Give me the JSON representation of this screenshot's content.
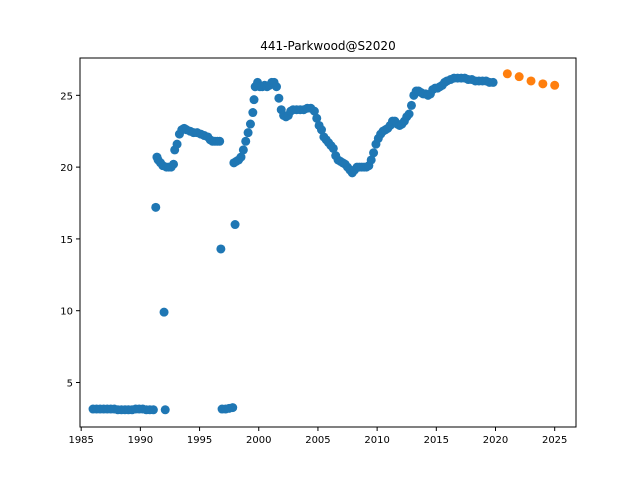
{
  "chart_data": {
    "type": "scatter",
    "title": "441-Parkwood@S2020",
    "xlabel": "",
    "ylabel": "",
    "xlim": [
      1984.9,
      2026.8
    ],
    "ylim": [
      1.9,
      27.6
    ],
    "xticks": [
      1985,
      1990,
      1995,
      2000,
      2005,
      2010,
      2015,
      2020,
      2025
    ],
    "yticks": [
      5,
      10,
      15,
      20,
      25
    ],
    "grid": false,
    "legend": "none",
    "series": [
      {
        "color": "#1f77b4",
        "points": [
          [
            1986.0,
            3.15
          ],
          [
            1986.3,
            3.15
          ],
          [
            1986.6,
            3.15
          ],
          [
            1986.9,
            3.15
          ],
          [
            1987.2,
            3.15
          ],
          [
            1987.5,
            3.15
          ],
          [
            1987.8,
            3.15
          ],
          [
            1988.1,
            3.1
          ],
          [
            1988.4,
            3.1
          ],
          [
            1988.7,
            3.1
          ],
          [
            1989.0,
            3.1
          ],
          [
            1989.3,
            3.1
          ],
          [
            1989.6,
            3.15
          ],
          [
            1989.9,
            3.15
          ],
          [
            1990.2,
            3.15
          ],
          [
            1990.5,
            3.1
          ],
          [
            1990.8,
            3.1
          ],
          [
            1991.1,
            3.1
          ],
          [
            1991.3,
            17.2
          ],
          [
            1991.4,
            20.7
          ],
          [
            1991.5,
            20.5
          ],
          [
            1991.7,
            20.3
          ],
          [
            1991.9,
            20.1
          ],
          [
            1992.0,
            9.9
          ],
          [
            1992.1,
            3.1
          ],
          [
            1992.2,
            20.0
          ],
          [
            1992.4,
            20.0
          ],
          [
            1992.6,
            20.0
          ],
          [
            1992.8,
            20.2
          ],
          [
            1992.9,
            21.2
          ],
          [
            1993.1,
            21.6
          ],
          [
            1993.3,
            22.3
          ],
          [
            1993.5,
            22.6
          ],
          [
            1993.7,
            22.7
          ],
          [
            1993.9,
            22.6
          ],
          [
            1994.2,
            22.5
          ],
          [
            1994.5,
            22.4
          ],
          [
            1994.8,
            22.4
          ],
          [
            1995.1,
            22.3
          ],
          [
            1995.4,
            22.2
          ],
          [
            1995.7,
            22.1
          ],
          [
            1995.9,
            21.9
          ],
          [
            1996.1,
            21.8
          ],
          [
            1996.3,
            21.8
          ],
          [
            1996.5,
            21.8
          ],
          [
            1996.7,
            21.8
          ],
          [
            1996.8,
            14.3
          ],
          [
            1996.9,
            3.15
          ],
          [
            1997.2,
            3.15
          ],
          [
            1997.5,
            3.2
          ],
          [
            1997.8,
            3.25
          ],
          [
            1997.9,
            20.3
          ],
          [
            1998.0,
            16.0
          ],
          [
            1998.1,
            20.4
          ],
          [
            1998.3,
            20.5
          ],
          [
            1998.5,
            20.7
          ],
          [
            1998.7,
            21.2
          ],
          [
            1998.9,
            21.8
          ],
          [
            1999.1,
            22.4
          ],
          [
            1999.3,
            23.0
          ],
          [
            1999.5,
            23.8
          ],
          [
            1999.6,
            24.7
          ],
          [
            1999.7,
            25.6
          ],
          [
            1999.9,
            25.9
          ],
          [
            2000.1,
            25.6
          ],
          [
            2000.3,
            25.6
          ],
          [
            2000.5,
            25.7
          ],
          [
            2000.7,
            25.6
          ],
          [
            2000.9,
            25.7
          ],
          [
            2001.1,
            25.9
          ],
          [
            2001.3,
            25.9
          ],
          [
            2001.5,
            25.6
          ],
          [
            2001.7,
            24.8
          ],
          [
            2001.9,
            24.0
          ],
          [
            2002.1,
            23.6
          ],
          [
            2002.3,
            23.5
          ],
          [
            2002.5,
            23.6
          ],
          [
            2002.7,
            23.9
          ],
          [
            2002.9,
            24.0
          ],
          [
            2003.2,
            24.0
          ],
          [
            2003.5,
            24.0
          ],
          [
            2003.8,
            24.0
          ],
          [
            2004.1,
            24.1
          ],
          [
            2004.4,
            24.1
          ],
          [
            2004.7,
            23.9
          ],
          [
            2004.9,
            23.4
          ],
          [
            2005.1,
            22.9
          ],
          [
            2005.3,
            22.6
          ],
          [
            2005.5,
            22.1
          ],
          [
            2005.7,
            21.9
          ],
          [
            2005.9,
            21.7
          ],
          [
            2006.1,
            21.5
          ],
          [
            2006.3,
            21.3
          ],
          [
            2006.5,
            20.8
          ],
          [
            2006.7,
            20.5
          ],
          [
            2006.9,
            20.4
          ],
          [
            2007.1,
            20.3
          ],
          [
            2007.3,
            20.2
          ],
          [
            2007.5,
            20.0
          ],
          [
            2007.7,
            19.8
          ],
          [
            2007.9,
            19.6
          ],
          [
            2008.1,
            19.8
          ],
          [
            2008.3,
            20.0
          ],
          [
            2008.5,
            20.0
          ],
          [
            2008.7,
            20.0
          ],
          [
            2008.9,
            20.0
          ],
          [
            2009.1,
            20.0
          ],
          [
            2009.3,
            20.1
          ],
          [
            2009.5,
            20.5
          ],
          [
            2009.7,
            21.0
          ],
          [
            2009.9,
            21.6
          ],
          [
            2010.1,
            22.0
          ],
          [
            2010.3,
            22.3
          ],
          [
            2010.5,
            22.5
          ],
          [
            2010.7,
            22.6
          ],
          [
            2010.9,
            22.7
          ],
          [
            2011.1,
            22.9
          ],
          [
            2011.3,
            23.2
          ],
          [
            2011.5,
            23.2
          ],
          [
            2011.7,
            23.0
          ],
          [
            2011.9,
            22.9
          ],
          [
            2012.1,
            23.0
          ],
          [
            2012.3,
            23.2
          ],
          [
            2012.5,
            23.5
          ],
          [
            2012.7,
            23.7
          ],
          [
            2012.9,
            24.3
          ],
          [
            2013.1,
            25.0
          ],
          [
            2013.3,
            25.3
          ],
          [
            2013.5,
            25.3
          ],
          [
            2013.7,
            25.2
          ],
          [
            2013.9,
            25.1
          ],
          [
            2014.1,
            25.1
          ],
          [
            2014.3,
            25.0
          ],
          [
            2014.5,
            25.1
          ],
          [
            2014.7,
            25.4
          ],
          [
            2014.9,
            25.5
          ],
          [
            2015.1,
            25.5
          ],
          [
            2015.3,
            25.6
          ],
          [
            2015.5,
            25.7
          ],
          [
            2015.7,
            25.9
          ],
          [
            2015.9,
            26.0
          ],
          [
            2016.2,
            26.1
          ],
          [
            2016.5,
            26.2
          ],
          [
            2016.8,
            26.2
          ],
          [
            2017.1,
            26.2
          ],
          [
            2017.4,
            26.2
          ],
          [
            2017.7,
            26.1
          ],
          [
            2018.0,
            26.1
          ],
          [
            2018.3,
            26.0
          ],
          [
            2018.6,
            26.0
          ],
          [
            2018.9,
            26.0
          ],
          [
            2019.2,
            26.0
          ],
          [
            2019.5,
            25.9
          ],
          [
            2019.8,
            25.9
          ]
        ]
      },
      {
        "color": "#ff7f0e",
        "points": [
          [
            2021.0,
            26.5
          ],
          [
            2022.0,
            26.3
          ],
          [
            2023.0,
            26.0
          ],
          [
            2024.0,
            25.8
          ],
          [
            2025.0,
            25.7
          ]
        ]
      }
    ]
  }
}
